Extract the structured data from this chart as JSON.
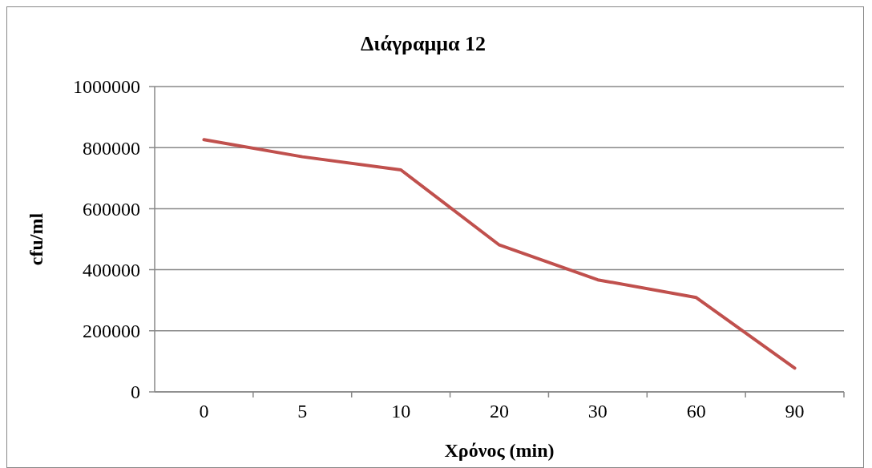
{
  "chart_data": {
    "type": "line",
    "title": "Διάγραμμα 12",
    "xlabel": "Χρόνος (min)",
    "ylabel": "cfu/ml",
    "categories": [
      "0",
      "5",
      "10",
      "20",
      "30",
      "60",
      "90"
    ],
    "series": [
      {
        "color": "#c0504d",
        "values": [
          826000,
          770000,
          727000,
          481000,
          367000,
          309000,
          78000
        ]
      }
    ],
    "ylim": [
      0,
      1000000
    ],
    "yticks": [
      0,
      200000,
      400000,
      600000,
      800000,
      1000000
    ],
    "grid": "y",
    "marker": "none",
    "line_style": "solid"
  }
}
